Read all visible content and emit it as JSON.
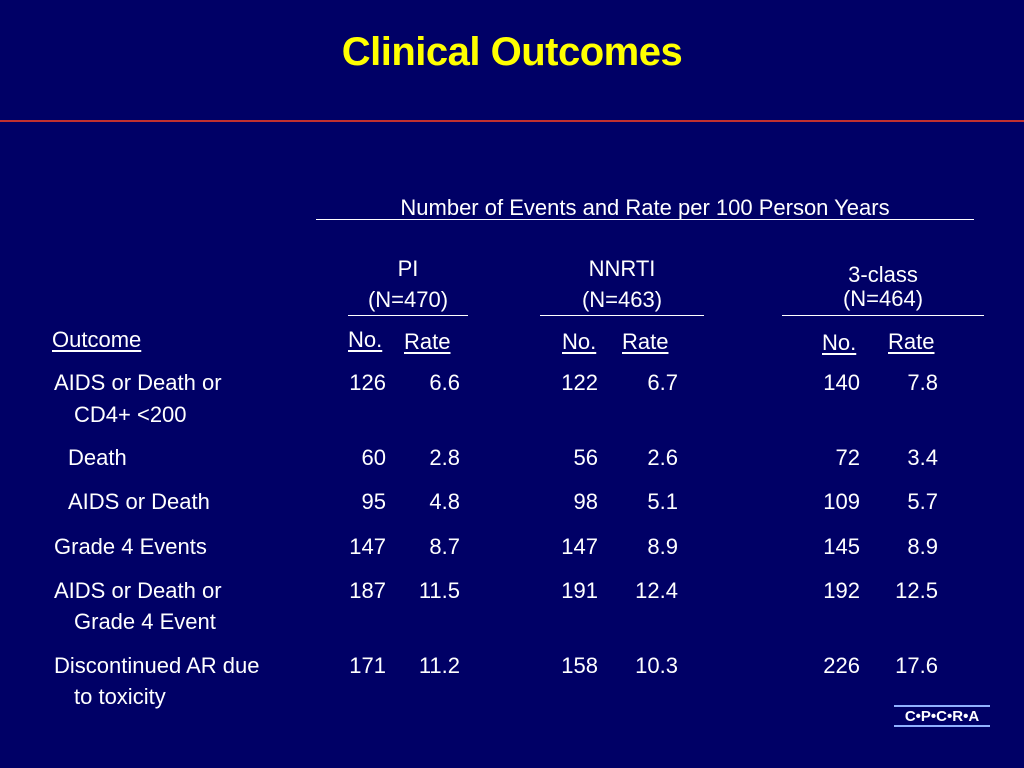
{
  "title": "Clinical Outcomes",
  "table": {
    "super_header": "Number of Events and Rate per 100 Person Years",
    "groups": [
      {
        "name": "PI",
        "n": "(N=470)"
      },
      {
        "name": "NNRTI",
        "n": "(N=463)"
      },
      {
        "name": "3-class",
        "n": "(N=464)"
      }
    ],
    "outcome_header": "Outcome",
    "no_header": "No.",
    "rate_header": "Rate",
    "rows": [
      {
        "line1": "AIDS or Death or",
        "line2": "CD4+ <200",
        "values": [
          "126",
          "6.6",
          "122",
          "6.7",
          "140",
          "7.8"
        ]
      },
      {
        "line1": "Death",
        "line2": "",
        "values": [
          "60",
          "2.8",
          "56",
          "2.6",
          "72",
          "3.4"
        ]
      },
      {
        "line1": "AIDS or Death",
        "line2": "",
        "values": [
          "95",
          "4.8",
          "98",
          "5.1",
          "109",
          "5.7"
        ]
      },
      {
        "line1": "Grade 4 Events",
        "line2": "",
        "values": [
          "147",
          "8.7",
          "147",
          "8.9",
          "145",
          "8.9"
        ]
      },
      {
        "line1": "AIDS or Death or",
        "line2": "Grade 4 Event",
        "values": [
          "187",
          "11.5",
          "191",
          "12.4",
          "192",
          "12.5"
        ]
      },
      {
        "line1": "Discontinued AR due",
        "line2": "to toxicity",
        "values": [
          "171",
          "11.2",
          "158",
          "10.3",
          "226",
          "17.6"
        ]
      }
    ]
  },
  "logo": "C•P•C•R•A"
}
